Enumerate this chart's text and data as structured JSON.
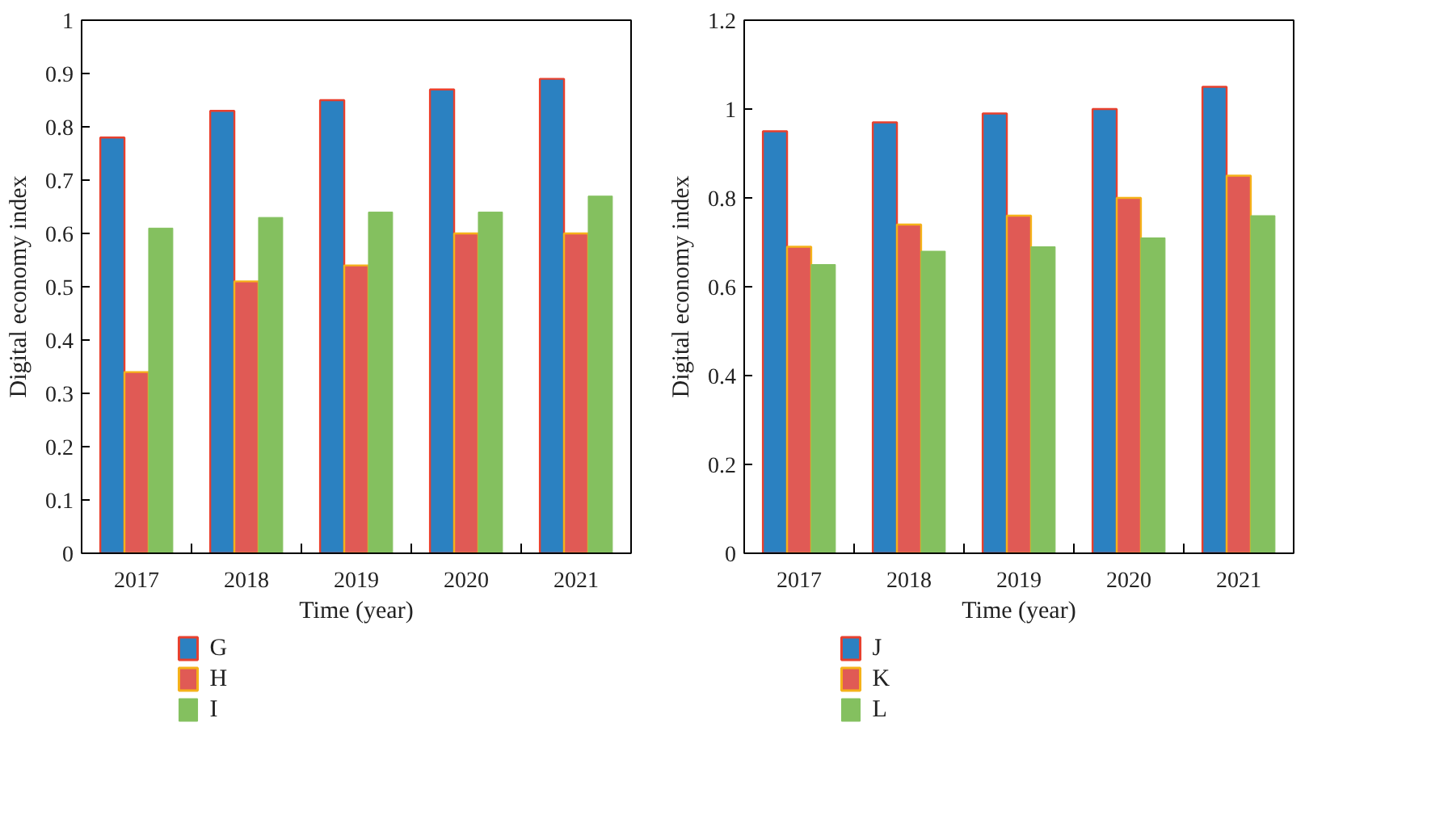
{
  "chart_data": [
    {
      "type": "bar",
      "xlabel": "Time (year)",
      "ylabel": "Digital economy index",
      "categories": [
        "2017",
        "2018",
        "2019",
        "2020",
        "2021"
      ],
      "ylim": [
        0,
        1
      ],
      "yticks": [
        0,
        0.1,
        0.2,
        0.3,
        0.4,
        0.5,
        0.6,
        0.7,
        0.8,
        0.9,
        1
      ],
      "legend": "bottom left",
      "series": [
        {
          "name": "G",
          "color": "#2b81c1",
          "values": [
            0.78,
            0.83,
            0.85,
            0.87,
            0.89
          ]
        },
        {
          "name": "H",
          "color": "#e05a55",
          "values": [
            0.34,
            0.51,
            0.54,
            0.6,
            0.6
          ]
        },
        {
          "name": "I",
          "color": "#84c05f",
          "values": [
            0.61,
            0.63,
            0.64,
            0.64,
            0.67
          ]
        }
      ]
    },
    {
      "type": "bar",
      "xlabel": "Time (year)",
      "ylabel": "Digital economy index",
      "categories": [
        "2017",
        "2018",
        "2019",
        "2020",
        "2021"
      ],
      "ylim": [
        0,
        1.2
      ],
      "yticks": [
        0,
        0.2,
        0.4,
        0.6,
        0.8,
        1,
        1.2
      ],
      "legend": "bottom left",
      "series": [
        {
          "name": "J",
          "color": "#2b81c1",
          "values": [
            0.95,
            0.97,
            0.99,
            1.0,
            1.05
          ]
        },
        {
          "name": "K",
          "color": "#e05a55",
          "values": [
            0.69,
            0.74,
            0.76,
            0.8,
            0.85
          ]
        },
        {
          "name": "L",
          "color": "#84c05f",
          "values": [
            0.65,
            0.68,
            0.69,
            0.71,
            0.76
          ]
        }
      ]
    }
  ]
}
